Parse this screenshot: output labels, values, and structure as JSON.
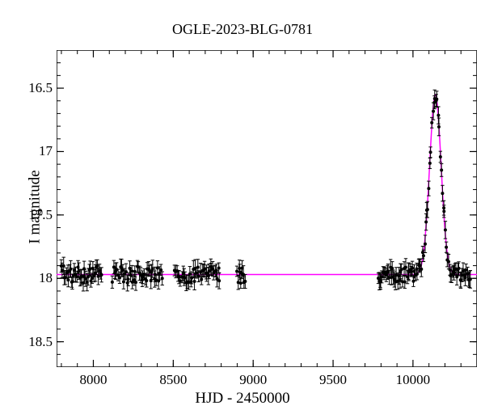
{
  "title": "OGLE-2023-BLG-0781",
  "ylabel": "I magnitude",
  "xlabel": "HJD - 2450000",
  "chart": {
    "type": "scatter+line",
    "xlim": [
      7770,
      10400
    ],
    "ylim": [
      18.7,
      16.2
    ],
    "ymin": 16.2,
    "ymax": 18.7,
    "yticks": [
      16.5,
      17,
      17.5,
      18,
      18.5
    ],
    "yminor_step": 0.1,
    "xticks": [
      8000,
      8500,
      9000,
      9500,
      10000
    ],
    "xminor_step": 100,
    "plot_bg": "#ffffff",
    "axis_color": "#000000",
    "model_color": "#ff00ff",
    "model_width": 1.5,
    "marker_color": "#000000",
    "marker_radius": 2.0,
    "segments": [
      {
        "xstart": 7800,
        "xend": 8050,
        "n": 40,
        "baseline": 17.97,
        "scatter": 0.07
      },
      {
        "xstart": 8120,
        "xend": 8430,
        "n": 45,
        "baseline": 17.97,
        "scatter": 0.07
      },
      {
        "xstart": 8510,
        "xend": 8790,
        "n": 40,
        "baseline": 17.97,
        "scatter": 0.07
      },
      {
        "xstart": 8900,
        "xend": 8950,
        "n": 10,
        "baseline": 17.97,
        "scatter": 0.07
      },
      {
        "xstart": 9780,
        "xend": 10360,
        "n": 90,
        "baseline": 17.97,
        "scatter": 0.06
      }
    ],
    "model": {
      "baseline": 17.97,
      "t0": 10140,
      "tE": 60,
      "A_peak": 1.42
    }
  }
}
